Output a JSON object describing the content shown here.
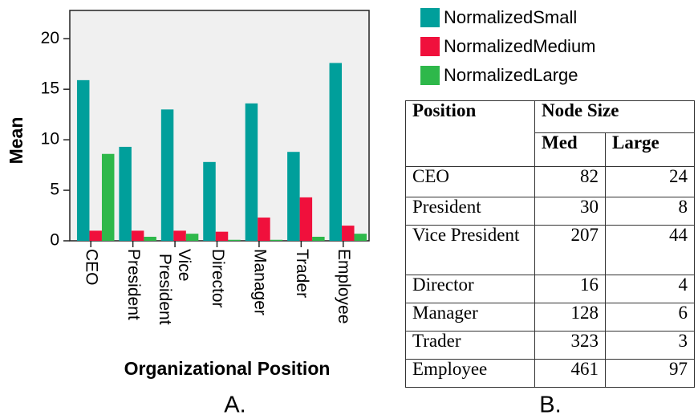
{
  "chart_data": {
    "type": "bar",
    "y_label": "Mean",
    "x_label": "Organizational Position",
    "categories": [
      "CEO",
      "President",
      "Vice President",
      "Director",
      "Manager",
      "Trader",
      "Employee"
    ],
    "series": [
      {
        "name": "NormalizedSmall",
        "color": "#009f9b",
        "values": [
          15.9,
          9.3,
          13.0,
          7.8,
          13.6,
          8.8,
          17.6
        ]
      },
      {
        "name": "NormalizedMedium",
        "color": "#f0103c",
        "values": [
          1.0,
          1.0,
          1.0,
          0.9,
          2.3,
          4.3,
          1.5
        ]
      },
      {
        "name": "NormalizedLarge",
        "color": "#2eb84a",
        "values": [
          8.6,
          0.4,
          0.7,
          0.1,
          0.1,
          0.4,
          0.7
        ]
      }
    ],
    "ylim": [
      0,
      22.8
    ],
    "yticks": [
      0,
      5,
      10,
      15,
      20
    ],
    "grid": false,
    "legend": "top-right"
  },
  "table": {
    "header": {
      "position": "Position",
      "group": "Node Size",
      "columns": [
        "Med",
        "Large"
      ]
    },
    "rows": [
      [
        "CEO",
        82,
        24
      ],
      [
        "President",
        30,
        8
      ],
      [
        "Vice President",
        207,
        44
      ],
      [
        "Director",
        16,
        4
      ],
      [
        "Manager",
        128,
        6
      ],
      [
        "Trader",
        323,
        3
      ],
      [
        "Employee",
        461,
        97
      ]
    ]
  },
  "panel_labels": [
    "A.",
    "B."
  ]
}
